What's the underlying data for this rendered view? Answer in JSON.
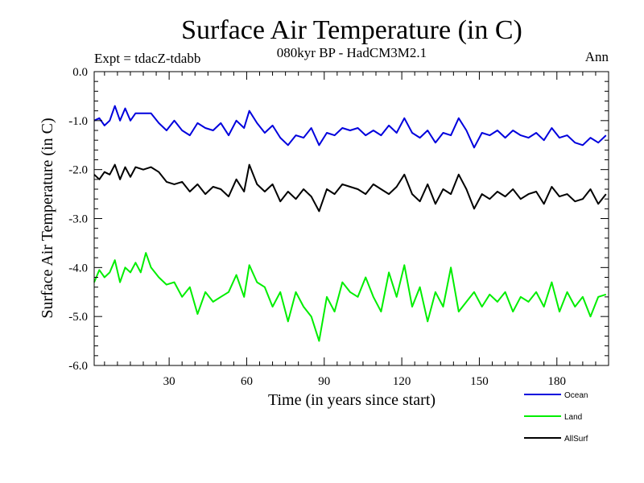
{
  "chart_data": {
    "type": "line",
    "title": "Surface Air Temperature (in C)",
    "subtitle": "080kyr BP - HadCM3M2.1",
    "experiment_label": "Expt = tdacZ-tdabb",
    "season_label": "Ann",
    "xlabel": "Time (in years since start)",
    "ylabel": "Surface Air Temperature (in C)",
    "xlim": [
      1,
      200
    ],
    "ylim": [
      -6.0,
      0.0
    ],
    "x_ticks": [
      30,
      60,
      90,
      120,
      150,
      180
    ],
    "x_tick_labels": [
      "30",
      "60",
      "90",
      "120",
      "150",
      "180"
    ],
    "y_ticks": [
      0.0,
      -1.0,
      -2.0,
      -3.0,
      -4.0,
      -5.0,
      -6.0
    ],
    "y_tick_labels": [
      "0.0",
      "-1.0",
      "-2.0",
      "-3.0",
      "-4.0",
      "-5.0",
      "-6.0"
    ],
    "grid": false,
    "legend_position": "bottom-right",
    "series": [
      {
        "name": "Ocean",
        "color": "#0000dd",
        "x": [
          1,
          3,
          5,
          7,
          9,
          11,
          13,
          15,
          17,
          20,
          23,
          26,
          29,
          32,
          35,
          38,
          41,
          44,
          47,
          50,
          53,
          56,
          59,
          61,
          64,
          67,
          70,
          73,
          76,
          79,
          82,
          85,
          88,
          91,
          94,
          97,
          100,
          103,
          106,
          109,
          112,
          115,
          118,
          121,
          124,
          127,
          130,
          133,
          136,
          139,
          142,
          145,
          148,
          151,
          154,
          157,
          160,
          163,
          166,
          169,
          172,
          175,
          178,
          181,
          184,
          187,
          190,
          193,
          196,
          199
        ],
        "values": [
          -1.0,
          -0.95,
          -1.1,
          -1.0,
          -0.7,
          -1.0,
          -0.75,
          -1.0,
          -0.85,
          -0.85,
          -0.85,
          -1.05,
          -1.2,
          -1.0,
          -1.2,
          -1.3,
          -1.05,
          -1.15,
          -1.2,
          -1.05,
          -1.3,
          -1.0,
          -1.15,
          -0.8,
          -1.05,
          -1.25,
          -1.1,
          -1.35,
          -1.5,
          -1.3,
          -1.35,
          -1.15,
          -1.5,
          -1.25,
          -1.3,
          -1.15,
          -1.2,
          -1.15,
          -1.3,
          -1.2,
          -1.3,
          -1.1,
          -1.25,
          -0.95,
          -1.25,
          -1.35,
          -1.2,
          -1.45,
          -1.25,
          -1.3,
          -0.95,
          -1.2,
          -1.55,
          -1.25,
          -1.3,
          -1.2,
          -1.35,
          -1.2,
          -1.3,
          -1.35,
          -1.25,
          -1.4,
          -1.15,
          -1.35,
          -1.3,
          -1.45,
          -1.5,
          -1.35,
          -1.45,
          -1.3
        ]
      },
      {
        "name": "Land",
        "color": "#00ee00",
        "x": [
          1,
          3,
          5,
          7,
          9,
          11,
          13,
          15,
          17,
          19,
          21,
          23,
          26,
          29,
          32,
          35,
          38,
          41,
          44,
          47,
          50,
          53,
          56,
          59,
          61,
          64,
          67,
          70,
          73,
          76,
          79,
          82,
          85,
          88,
          91,
          94,
          97,
          100,
          103,
          106,
          109,
          112,
          115,
          118,
          121,
          124,
          127,
          130,
          133,
          136,
          139,
          142,
          145,
          148,
          151,
          154,
          157,
          160,
          163,
          166,
          169,
          172,
          175,
          178,
          181,
          184,
          187,
          190,
          193,
          196,
          199
        ],
        "values": [
          -4.3,
          -4.05,
          -4.2,
          -4.1,
          -3.85,
          -4.3,
          -4.0,
          -4.1,
          -3.9,
          -4.1,
          -3.7,
          -4.0,
          -4.2,
          -4.35,
          -4.3,
          -4.6,
          -4.4,
          -4.95,
          -4.5,
          -4.7,
          -4.6,
          -4.5,
          -4.15,
          -4.6,
          -3.95,
          -4.3,
          -4.4,
          -4.8,
          -4.5,
          -5.1,
          -4.5,
          -4.8,
          -5.0,
          -5.5,
          -4.6,
          -4.9,
          -4.3,
          -4.5,
          -4.6,
          -4.2,
          -4.6,
          -4.9,
          -4.1,
          -4.6,
          -3.95,
          -4.8,
          -4.4,
          -5.1,
          -4.5,
          -4.8,
          -4.0,
          -4.9,
          -4.7,
          -4.5,
          -4.8,
          -4.55,
          -4.7,
          -4.5,
          -4.9,
          -4.6,
          -4.7,
          -4.5,
          -4.8,
          -4.3,
          -4.9,
          -4.5,
          -4.8,
          -4.6,
          -5.0,
          -4.6,
          -4.55
        ]
      },
      {
        "name": "AllSurf",
        "color": "#000000",
        "x": [
          1,
          3,
          5,
          7,
          9,
          11,
          13,
          15,
          17,
          20,
          23,
          26,
          29,
          32,
          35,
          38,
          41,
          44,
          47,
          50,
          53,
          56,
          59,
          61,
          64,
          67,
          70,
          73,
          76,
          79,
          82,
          85,
          88,
          91,
          94,
          97,
          100,
          103,
          106,
          109,
          112,
          115,
          118,
          121,
          124,
          127,
          130,
          133,
          136,
          139,
          142,
          145,
          148,
          151,
          154,
          157,
          160,
          163,
          166,
          169,
          172,
          175,
          178,
          181,
          184,
          187,
          190,
          193,
          196,
          199
        ],
        "values": [
          -2.1,
          -2.2,
          -2.05,
          -2.1,
          -1.9,
          -2.2,
          -1.95,
          -2.15,
          -1.95,
          -2.0,
          -1.95,
          -2.05,
          -2.25,
          -2.3,
          -2.25,
          -2.45,
          -2.3,
          -2.5,
          -2.35,
          -2.4,
          -2.55,
          -2.2,
          -2.45,
          -1.9,
          -2.3,
          -2.45,
          -2.3,
          -2.65,
          -2.45,
          -2.6,
          -2.4,
          -2.55,
          -2.85,
          -2.4,
          -2.5,
          -2.3,
          -2.35,
          -2.4,
          -2.5,
          -2.3,
          -2.4,
          -2.5,
          -2.35,
          -2.1,
          -2.5,
          -2.65,
          -2.3,
          -2.7,
          -2.4,
          -2.5,
          -2.1,
          -2.4,
          -2.8,
          -2.5,
          -2.6,
          -2.45,
          -2.55,
          -2.4,
          -2.6,
          -2.5,
          -2.45,
          -2.7,
          -2.35,
          -2.55,
          -2.5,
          -2.65,
          -2.6,
          -2.4,
          -2.7,
          -2.5
        ]
      }
    ]
  }
}
